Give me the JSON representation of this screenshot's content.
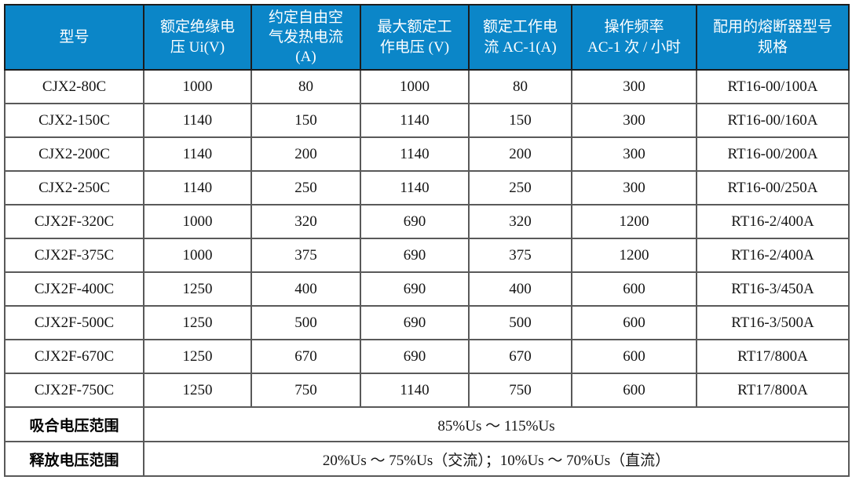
{
  "table": {
    "header_bg_color": "#0b86c8",
    "header_text_color": "#ffffff",
    "grid_color": "#595959",
    "columns": [
      {
        "label": "型号"
      },
      {
        "label": "额定绝缘电\n压 Ui(V)"
      },
      {
        "label": "约定自由空\n气发热电流\n(A)"
      },
      {
        "label": "最大额定工\n作电压 (V)"
      },
      {
        "label": "额定工作电\n流 AC-1(A)"
      },
      {
        "label": "操作频率\nAC-1 次 / 小时"
      },
      {
        "label": "配用的熔断器型号\n规格"
      }
    ],
    "rows": [
      [
        "CJX2-80C",
        "1000",
        "80",
        "1000",
        "80",
        "300",
        "RT16-00/100A"
      ],
      [
        "CJX2-150C",
        "1140",
        "150",
        "1140",
        "150",
        "300",
        "RT16-00/160A"
      ],
      [
        "CJX2-200C",
        "1140",
        "200",
        "1140",
        "200",
        "300",
        "RT16-00/200A"
      ],
      [
        "CJX2-250C",
        "1140",
        "250",
        "1140",
        "250",
        "300",
        "RT16-00/250A"
      ],
      [
        "CJX2F-320C",
        "1000",
        "320",
        "690",
        "320",
        "1200",
        "RT16-2/400A"
      ],
      [
        "CJX2F-375C",
        "1000",
        "375",
        "690",
        "375",
        "1200",
        "RT16-2/400A"
      ],
      [
        "CJX2F-400C",
        "1250",
        "400",
        "690",
        "400",
        "600",
        "RT16-3/450A"
      ],
      [
        "CJX2F-500C",
        "1250",
        "500",
        "690",
        "500",
        "600",
        "RT16-3/500A"
      ],
      [
        "CJX2F-670C",
        "1250",
        "670",
        "690",
        "670",
        "600",
        "RT17/800A"
      ],
      [
        "CJX2F-750C",
        "1250",
        "750",
        "1140",
        "750",
        "600",
        "RT17/800A"
      ]
    ],
    "footer_rows": [
      {
        "label": "吸合电压范围",
        "value": "85%Us ～ 115%Us"
      },
      {
        "label": "释放电压范围",
        "value": "20%Us ～ 75%Us（交流）；10%Us ～ 70%Us（直流）"
      }
    ]
  }
}
